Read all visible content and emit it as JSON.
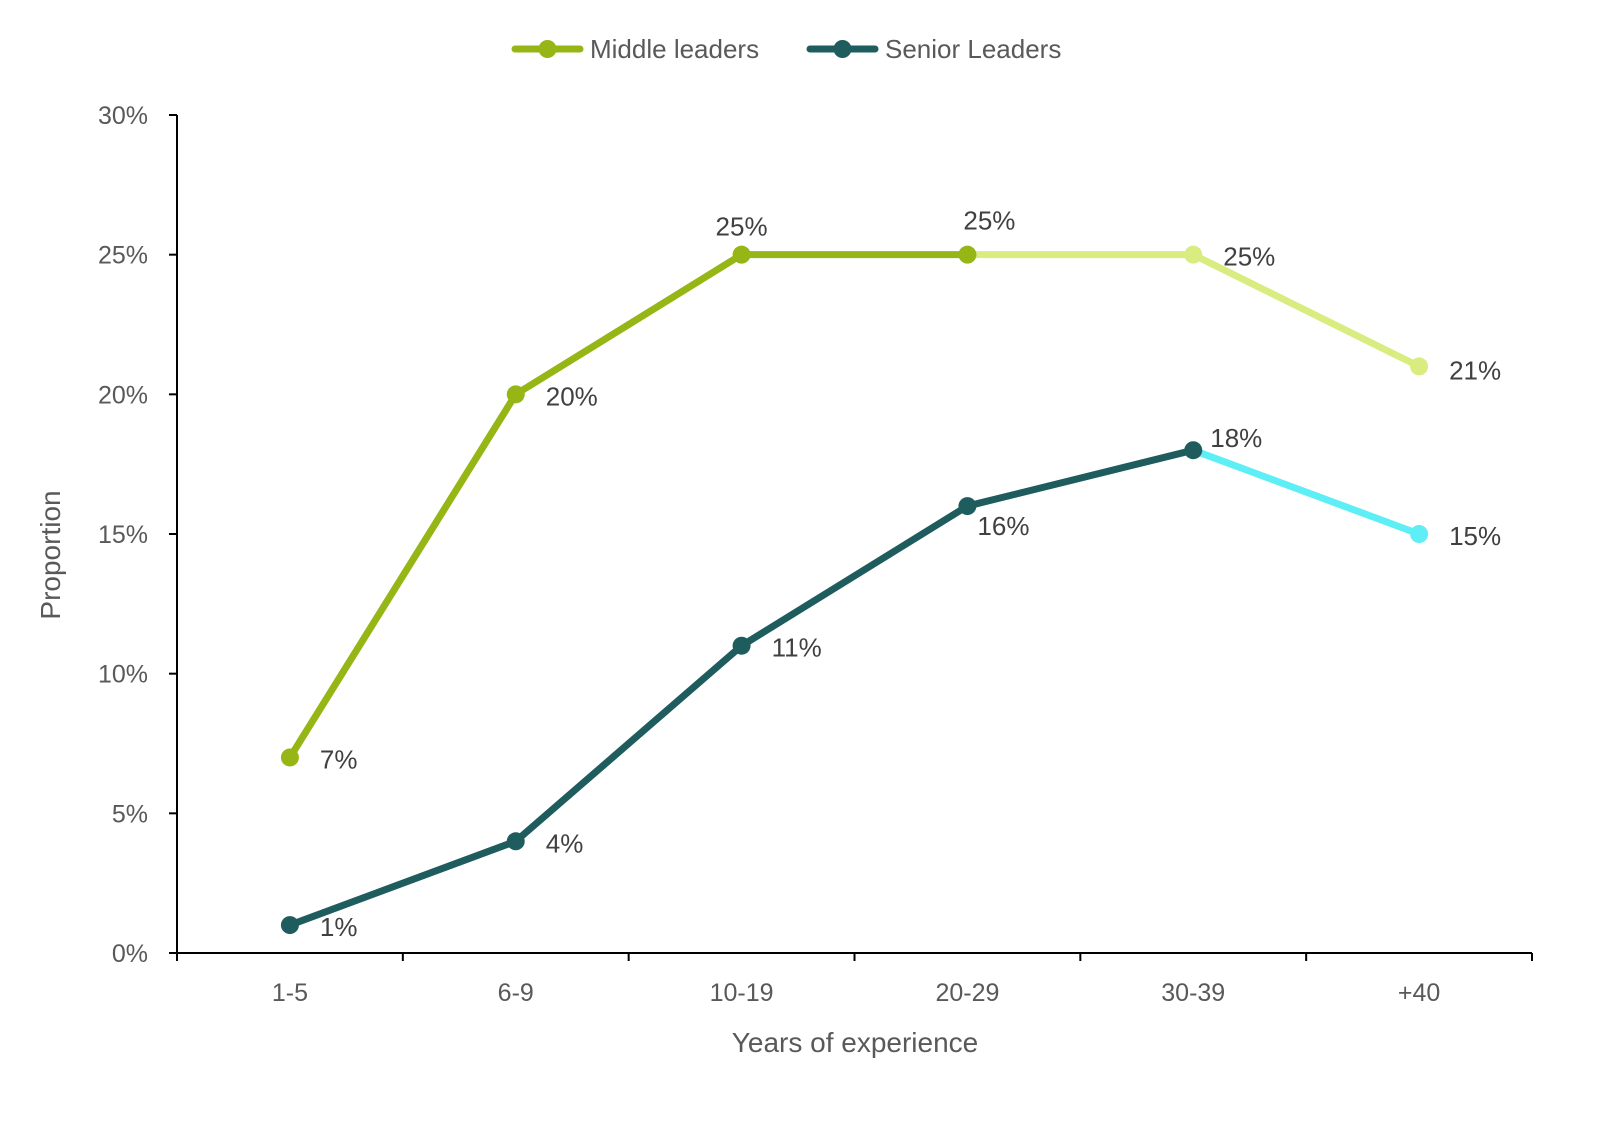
{
  "chart_data": {
    "type": "line",
    "categories": [
      "1-5",
      "6-9",
      "10-19",
      "20-29",
      "30-39",
      "+40"
    ],
    "xlabel": "Years of experience",
    "ylabel": "Proportion",
    "ylim": [
      0,
      30
    ],
    "yticks": [
      "0%",
      "5%",
      "10%",
      "15%",
      "20%",
      "25%",
      "30%"
    ],
    "grid": false,
    "legend": "top-center",
    "series": [
      {
        "name": "Middle leaders",
        "values": [
          7,
          20,
          25,
          25,
          25,
          21
        ],
        "labels": [
          "7%",
          "20%",
          "25%",
          "25%",
          "25%",
          "21%"
        ],
        "color": "#95B614",
        "highlight_color": "#D9EC80",
        "highlight_from_index": 3
      },
      {
        "name": "Senior Leaders",
        "values": [
          1,
          4,
          11,
          16,
          18,
          15
        ],
        "labels": [
          "1%",
          "4%",
          "11%",
          "16%",
          "18%",
          "15%"
        ],
        "color": "#1E5C5E",
        "highlight_color": "#5EEEF5",
        "highlight_from_index": 4
      }
    ]
  }
}
